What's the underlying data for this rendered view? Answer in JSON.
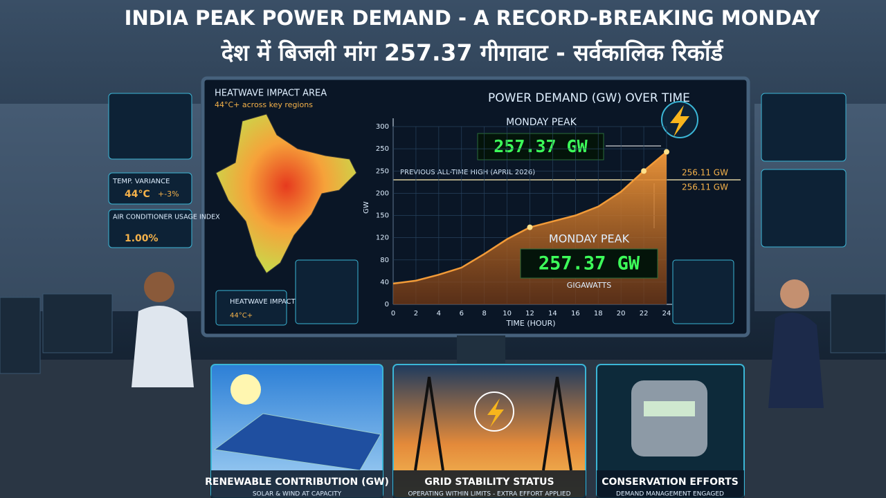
{
  "header": {
    "title": "INDIA PEAK POWER DEMAND - A RECORD-BREAKING MONDAY",
    "subtitle": "देश में बिजली मांग 257.37 गीगावाट - सर्वकालिक रिकॉर्ड"
  },
  "left_panels": {
    "temp_label": "TEMP. VARIANCE",
    "temp_value": "44°C",
    "temp_change": "+-3%",
    "ac_label": "AIR CONDITIONER USAGE INDEX",
    "ac_value": "1.00%"
  },
  "map": {
    "title": "HEATWAVE IMPACT AREA",
    "subtitle": "44°C+ across key regions",
    "inset_title": "HEATWAVE IMPACT AREA",
    "inset_value": "44°C+"
  },
  "chart_data": {
    "type": "line",
    "title": "POWER DEMAND (GW) OVER TIME",
    "ylabel": "GW",
    "xlabel": "TIME (HOUR)",
    "x": [
      0,
      2,
      4,
      6,
      8,
      10,
      12,
      14,
      16,
      18,
      20,
      22,
      24
    ],
    "values": [
      35,
      40,
      50,
      62,
      85,
      110,
      130,
      140,
      150,
      165,
      190,
      225,
      257.37
    ],
    "color": "#f29b38",
    "xlim": [
      0,
      24
    ],
    "ylim": [
      0,
      300
    ],
    "xticks": [
      0,
      2,
      4,
      6,
      8,
      10,
      12,
      14,
      16,
      18,
      20,
      22,
      24
    ],
    "y_axis_labels": [
      "300",
      "250",
      "250",
      "200",
      "150",
      "120",
      "80",
      "40",
      "0"
    ],
    "annotations": {
      "peak_label": "MONDAY PEAK",
      "peak_value": "257.37 GW",
      "previous_high": "PREVIOUS ALL-TIME HIGH (APRIL 2026)",
      "previous_value_1": "256.11 GW",
      "previous_value_2": "256.11 GW",
      "peak_label_2": "MONDAY PEAK",
      "peak_value_2": "257.37 GW",
      "unit": "GIGAWATTS"
    }
  },
  "bottom_panels": [
    {
      "title": "RENEWABLE CONTRIBUTION (GW)",
      "subtitle": "SOLAR & WIND AT CAPACITY"
    },
    {
      "title": "GRID STABILITY STATUS",
      "subtitle": "OPERATING WITHIN LIMITS - EXTRA EFFORT APPLIED"
    },
    {
      "title": "CONSERVATION EFFORTS",
      "subtitle": "DEMAND MANAGEMENT ENGAGED"
    }
  ]
}
